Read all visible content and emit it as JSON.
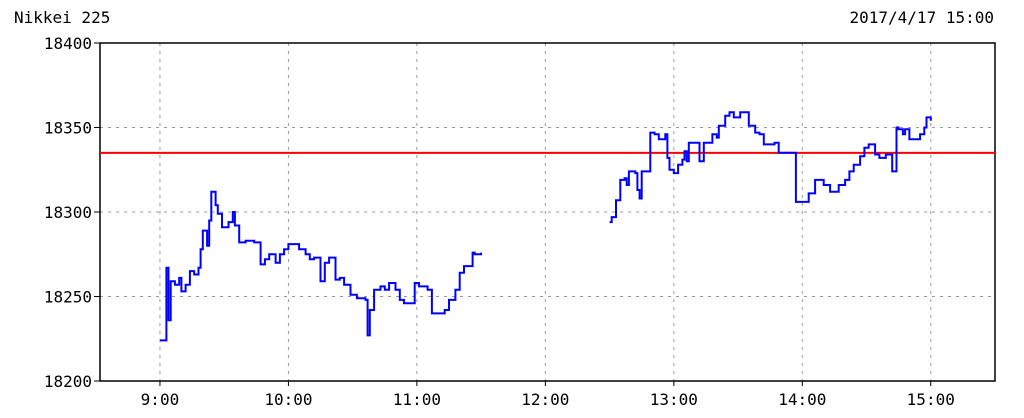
{
  "chart_data": {
    "type": "line",
    "title": "Nikkei 225",
    "timestamp": "2017/4/17 15:00",
    "xlim": [
      "8:32",
      "15:30"
    ],
    "ylim": [
      18200,
      18400
    ],
    "x_ticks": [
      "9:00",
      "10:00",
      "11:00",
      "12:00",
      "13:00",
      "14:00",
      "15:00"
    ],
    "y_ticks": [
      18200,
      18250,
      18300,
      18350,
      18400
    ],
    "grid": true,
    "step": true,
    "line_color": "#0000ff",
    "reference_line": {
      "value": 18335,
      "color": "#ff0000"
    },
    "series": [
      {
        "segment": "morning",
        "points": [
          [
            "9:00",
            18224
          ],
          [
            "9:03",
            18267
          ],
          [
            "9:04",
            18236
          ],
          [
            "9:05",
            18259
          ],
          [
            "9:07",
            18257
          ],
          [
            "9:09",
            18261
          ],
          [
            "9:10",
            18253
          ],
          [
            "9:12",
            18257
          ],
          [
            "9:14",
            18265
          ],
          [
            "9:16",
            18263
          ],
          [
            "9:18",
            18267
          ],
          [
            "9:19",
            18278
          ],
          [
            "9:20",
            18289
          ],
          [
            "9:22",
            18280
          ],
          [
            "9:23",
            18295
          ],
          [
            "9:24",
            18312
          ],
          [
            "9:26",
            18304
          ],
          [
            "9:27",
            18299
          ],
          [
            "9:29",
            18291
          ],
          [
            "9:32",
            18294
          ],
          [
            "9:34",
            18300
          ],
          [
            "9:35",
            18292
          ],
          [
            "9:37",
            18282
          ],
          [
            "9:40",
            18283
          ],
          [
            "9:44",
            18282
          ],
          [
            "9:47",
            18269
          ],
          [
            "9:49",
            18272
          ],
          [
            "9:51",
            18275
          ],
          [
            "9:54",
            18270
          ],
          [
            "9:56",
            18275
          ],
          [
            "9:58",
            18278
          ],
          [
            "10:00",
            18281
          ],
          [
            "10:03",
            18281
          ],
          [
            "10:05",
            18278
          ],
          [
            "10:08",
            18275
          ],
          [
            "10:10",
            18272
          ],
          [
            "10:12",
            18273
          ],
          [
            "10:15",
            18259
          ],
          [
            "10:17",
            18270
          ],
          [
            "10:19",
            18273
          ],
          [
            "10:22",
            18260
          ],
          [
            "10:24",
            18261
          ],
          [
            "10:26",
            18257
          ],
          [
            "10:29",
            18251
          ],
          [
            "10:32",
            18249
          ],
          [
            "10:36",
            18248
          ],
          [
            "10:37",
            18227
          ],
          [
            "10:38",
            18242
          ],
          [
            "10:40",
            18254
          ],
          [
            "10:43",
            18256
          ],
          [
            "10:45",
            18254
          ],
          [
            "10:47",
            18258
          ],
          [
            "10:50",
            18254
          ],
          [
            "10:52",
            18248
          ],
          [
            "10:54",
            18246
          ],
          [
            "10:57",
            18246
          ],
          [
            "10:59",
            18258
          ],
          [
            "11:01",
            18256
          ],
          [
            "11:05",
            18254
          ],
          [
            "11:07",
            18240
          ],
          [
            "11:11",
            18240
          ],
          [
            "11:13",
            18242
          ],
          [
            "11:15",
            18248
          ],
          [
            "11:18",
            18254
          ],
          [
            "11:20",
            18264
          ],
          [
            "11:22",
            18268
          ],
          [
            "11:26",
            18276
          ],
          [
            "11:27",
            18275
          ],
          [
            "11:30",
            18276
          ]
        ]
      },
      {
        "segment": "afternoon",
        "points": [
          [
            "12:30",
            18294
          ],
          [
            "12:31",
            18297
          ],
          [
            "12:33",
            18307
          ],
          [
            "12:35",
            18319
          ],
          [
            "12:37",
            18320
          ],
          [
            "12:38",
            18316
          ],
          [
            "12:39",
            18324
          ],
          [
            "12:42",
            18323
          ],
          [
            "12:43",
            18313
          ],
          [
            "12:44",
            18308
          ],
          [
            "12:45",
            18324
          ],
          [
            "12:48",
            18324
          ],
          [
            "12:49",
            18347
          ],
          [
            "12:51",
            18346
          ],
          [
            "12:53",
            18343
          ],
          [
            "12:56",
            18346
          ],
          [
            "12:57",
            18332
          ],
          [
            "12:58",
            18325
          ],
          [
            "13:00",
            18323
          ],
          [
            "13:02",
            18328
          ],
          [
            "13:04",
            18331
          ],
          [
            "13:05",
            18336
          ],
          [
            "13:06",
            18330
          ],
          [
            "13:07",
            18341
          ],
          [
            "13:11",
            18341
          ],
          [
            "13:12",
            18330
          ],
          [
            "13:14",
            18341
          ],
          [
            "13:17",
            18341
          ],
          [
            "13:18",
            18346
          ],
          [
            "13:20",
            18344
          ],
          [
            "13:21",
            18351
          ],
          [
            "13:24",
            18357
          ],
          [
            "13:26",
            18359
          ],
          [
            "13:28",
            18356
          ],
          [
            "13:31",
            18359
          ],
          [
            "13:33",
            18359
          ],
          [
            "13:35",
            18351
          ],
          [
            "13:38",
            18347
          ],
          [
            "13:40",
            18346
          ],
          [
            "13:42",
            18340
          ],
          [
            "13:45",
            18340
          ],
          [
            "13:47",
            18341
          ],
          [
            "13:49",
            18335
          ],
          [
            "13:52",
            18335
          ],
          [
            "13:54",
            18335
          ],
          [
            "13:56",
            18335
          ],
          [
            "13:57",
            18306
          ],
          [
            "14:01",
            18306
          ],
          [
            "14:03",
            18311
          ],
          [
            "14:06",
            18319
          ],
          [
            "14:08",
            18319
          ],
          [
            "14:10",
            18316
          ],
          [
            "14:13",
            18312
          ],
          [
            "14:15",
            18312
          ],
          [
            "14:17",
            18316
          ],
          [
            "14:20",
            18319
          ],
          [
            "14:22",
            18324
          ],
          [
            "14:24",
            18328
          ],
          [
            "14:27",
            18333
          ],
          [
            "14:29",
            18338
          ],
          [
            "14:31",
            18340
          ],
          [
            "14:34",
            18334
          ],
          [
            "14:36",
            18332
          ],
          [
            "14:39",
            18334
          ],
          [
            "14:42",
            18324
          ],
          [
            "14:44",
            18350
          ],
          [
            "14:45",
            18349
          ],
          [
            "14:47",
            18346
          ],
          [
            "14:48",
            18349
          ],
          [
            "14:50",
            18343
          ],
          [
            "14:52",
            18343
          ],
          [
            "14:55",
            18346
          ],
          [
            "14:57",
            18350
          ],
          [
            "14:58",
            18356
          ],
          [
            "15:00",
            18354
          ]
        ]
      }
    ]
  }
}
